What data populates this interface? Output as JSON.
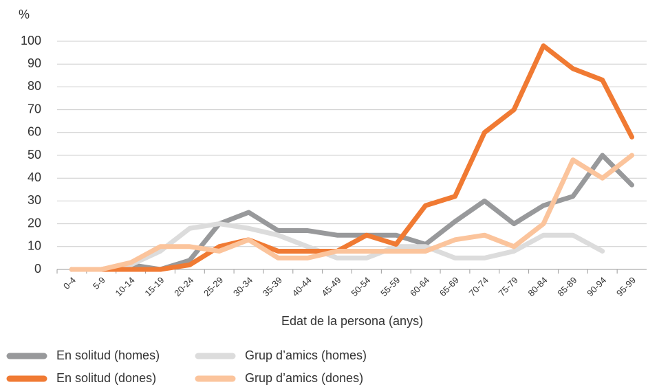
{
  "chart_data": {
    "type": "line",
    "y_label": "%",
    "x_label": "Edat de la persona (anys)",
    "categories": [
      "0-4",
      "5-9",
      "10-14",
      "15-19",
      "20-24",
      "25-29",
      "30-34",
      "35-39",
      "40-44",
      "45-49",
      "50-54",
      "55-59",
      "60-64",
      "65-69",
      "70-74",
      "75-79",
      "80-84",
      "85-89",
      "90-94",
      "95-99"
    ],
    "series": [
      {
        "name": "En solitud (homes)",
        "color": "#98999b",
        "values": [
          0,
          0,
          2,
          0,
          4,
          20,
          25,
          17,
          17,
          15,
          15,
          15,
          11,
          21,
          30,
          20,
          28,
          32,
          50,
          37
        ]
      },
      {
        "name": "Grup d’amics (homes)",
        "color": "#dcdcdc",
        "values": [
          0,
          0,
          2,
          8,
          18,
          20,
          18,
          15,
          10,
          5,
          5,
          10,
          10,
          5,
          5,
          8,
          15,
          15,
          8,
          null
        ]
      },
      {
        "name": "En solitud (dones)",
        "color": "#f07a33",
        "values": [
          0,
          0,
          0,
          0,
          2,
          10,
          13,
          8,
          8,
          8,
          15,
          11,
          28,
          32,
          60,
          70,
          98,
          88,
          83,
          58
        ]
      },
      {
        "name": "Grup d’amics (dones)",
        "color": "#fbc49c",
        "values": [
          0,
          0,
          3,
          10,
          10,
          8,
          13,
          5,
          5,
          8,
          8,
          8,
          8,
          13,
          15,
          10,
          20,
          48,
          40,
          50
        ]
      }
    ],
    "ylim": [
      0,
      100
    ],
    "yticks": [
      0,
      10,
      20,
      30,
      40,
      50,
      60,
      70,
      80,
      90,
      100
    ],
    "grid": true
  }
}
